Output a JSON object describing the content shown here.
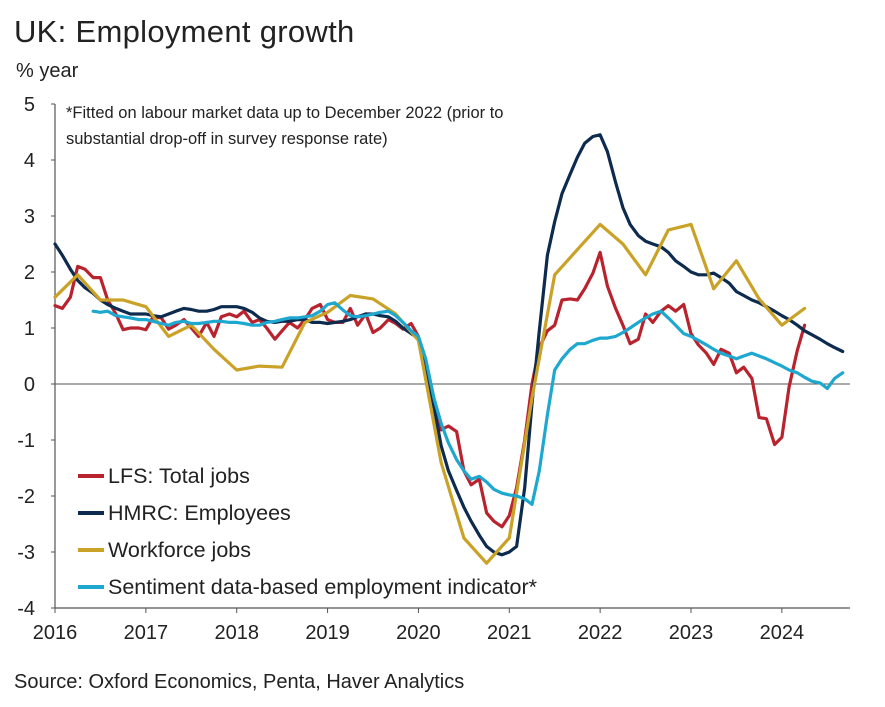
{
  "chart_data": {
    "type": "line",
    "title": "UK: Employment growth",
    "ylabel": "% year",
    "xlabel": "",
    "ylim": [
      -4,
      5
    ],
    "yticks": [
      5,
      4,
      3,
      2,
      1,
      0,
      -1,
      -2,
      -3,
      -4
    ],
    "xlim": [
      2016,
      2024.75
    ],
    "xticks": [
      2016,
      2017,
      2018,
      2019,
      2020,
      2021,
      2022,
      2023,
      2024
    ],
    "annotation_lines": [
      "*Fitted on labour market data up to December 2022 (prior to",
      "substantial drop-off in survey response rate)"
    ],
    "source": "Source: Oxford Economics, Penta, Haver Analytics",
    "legend_position": "bottom-left",
    "series": [
      {
        "name": "LFS: Total jobs",
        "color": "#b8232e",
        "x": [
          2016.0,
          2016.08,
          2016.17,
          2016.25,
          2016.33,
          2016.42,
          2016.5,
          2016.58,
          2016.67,
          2016.75,
          2016.83,
          2016.92,
          2017.0,
          2017.08,
          2017.17,
          2017.25,
          2017.33,
          2017.42,
          2017.5,
          2017.58,
          2017.67,
          2017.75,
          2017.83,
          2017.92,
          2018.0,
          2018.08,
          2018.17,
          2018.25,
          2018.33,
          2018.42,
          2018.5,
          2018.58,
          2018.67,
          2018.75,
          2018.83,
          2018.92,
          2019.0,
          2019.08,
          2019.17,
          2019.25,
          2019.33,
          2019.42,
          2019.5,
          2019.58,
          2019.67,
          2019.75,
          2019.83,
          2019.92,
          2020.0,
          2020.08,
          2020.17,
          2020.25,
          2020.33,
          2020.42,
          2020.5,
          2020.58,
          2020.67,
          2020.75,
          2020.83,
          2020.92,
          2021.0,
          2021.08,
          2021.17,
          2021.25,
          2021.33,
          2021.42,
          2021.5,
          2021.58,
          2021.67,
          2021.75,
          2021.83,
          2021.92,
          2022.0,
          2022.08,
          2022.17,
          2022.25,
          2022.33,
          2022.42,
          2022.5,
          2022.58,
          2022.67,
          2022.75,
          2022.83,
          2022.92,
          2023.0,
          2023.08,
          2023.17,
          2023.25,
          2023.33,
          2023.42,
          2023.5,
          2023.58,
          2023.67,
          2023.75,
          2023.83,
          2023.92,
          2024.0,
          2024.08,
          2024.17,
          2024.25,
          2024.33,
          2024.42,
          2024.5
        ],
        "values": [
          1.4,
          1.35,
          1.55,
          2.1,
          2.05,
          1.9,
          1.9,
          1.5,
          1.25,
          0.97,
          1.0,
          1.0,
          0.97,
          1.2,
          1.18,
          0.98,
          1.05,
          1.15,
          1.0,
          0.85,
          1.1,
          0.85,
          1.2,
          1.25,
          1.2,
          1.3,
          1.1,
          1.15,
          1.0,
          0.8,
          0.95,
          1.1,
          1.0,
          1.15,
          1.35,
          1.42,
          1.15,
          1.1,
          1.1,
          1.35,
          1.05,
          1.25,
          0.92,
          1.0,
          1.15,
          1.08,
          0.98,
          1.08,
          0.85,
          0.25,
          -0.4,
          -0.82,
          -0.75,
          -0.85,
          -1.55,
          -1.8,
          -1.7,
          -2.3,
          -2.45,
          -2.55,
          -2.35,
          -1.85,
          -1.0,
          0.0,
          0.65,
          0.95,
          1.05,
          1.5,
          1.52,
          1.5,
          1.7,
          1.98,
          2.35,
          1.75,
          1.35,
          1.05,
          0.72,
          0.8,
          1.25,
          1.1,
          1.3,
          1.4,
          1.3,
          1.42,
          0.9,
          0.7,
          0.55,
          0.35,
          0.62,
          0.55,
          0.2,
          0.3,
          0.1,
          -0.6,
          -0.62,
          -1.08,
          -0.95,
          -0.05,
          0.6,
          1.05,
          null,
          null,
          null
        ]
      },
      {
        "name": "HMRC: Employees",
        "color": "#0d2a4f",
        "x": [
          2016.0,
          2016.08,
          2016.17,
          2016.25,
          2016.33,
          2016.42,
          2016.5,
          2016.58,
          2016.67,
          2016.75,
          2016.83,
          2016.92,
          2017.0,
          2017.08,
          2017.17,
          2017.25,
          2017.33,
          2017.42,
          2017.5,
          2017.58,
          2017.67,
          2017.75,
          2017.83,
          2017.92,
          2018.0,
          2018.08,
          2018.17,
          2018.25,
          2018.33,
          2018.42,
          2018.5,
          2018.58,
          2018.67,
          2018.75,
          2018.83,
          2018.92,
          2019.0,
          2019.08,
          2019.17,
          2019.25,
          2019.33,
          2019.42,
          2019.5,
          2019.58,
          2019.67,
          2019.75,
          2019.83,
          2019.92,
          2020.0,
          2020.08,
          2020.17,
          2020.25,
          2020.33,
          2020.42,
          2020.5,
          2020.58,
          2020.67,
          2020.75,
          2020.83,
          2020.92,
          2021.0,
          2021.08,
          2021.17,
          2021.25,
          2021.33,
          2021.42,
          2021.5,
          2021.58,
          2021.67,
          2021.75,
          2021.83,
          2021.92,
          2022.0,
          2022.08,
          2022.17,
          2022.25,
          2022.33,
          2022.42,
          2022.5,
          2022.58,
          2022.67,
          2022.75,
          2022.83,
          2022.92,
          2023.0,
          2023.08,
          2023.17,
          2023.25,
          2023.33,
          2023.42,
          2023.5,
          2023.58,
          2023.67,
          2023.75,
          2023.83,
          2023.92,
          2024.0,
          2024.08,
          2024.17,
          2024.25,
          2024.33,
          2024.42,
          2024.5,
          2024.58,
          2024.67
        ],
        "values": [
          2.5,
          2.3,
          2.05,
          1.85,
          1.72,
          1.62,
          1.5,
          1.42,
          1.35,
          1.3,
          1.25,
          1.25,
          1.25,
          1.22,
          1.2,
          1.25,
          1.3,
          1.35,
          1.33,
          1.3,
          1.3,
          1.33,
          1.38,
          1.38,
          1.38,
          1.35,
          1.28,
          1.18,
          1.12,
          1.1,
          1.12,
          1.12,
          1.15,
          1.15,
          1.1,
          1.1,
          1.08,
          1.1,
          1.12,
          1.15,
          1.2,
          1.25,
          1.25,
          1.22,
          1.2,
          1.12,
          1.0,
          0.9,
          0.82,
          0.4,
          -0.4,
          -1.1,
          -1.55,
          -1.9,
          -2.2,
          -2.45,
          -2.7,
          -2.9,
          -3.0,
          -3.05,
          -3.0,
          -2.9,
          -1.85,
          -0.35,
          0.95,
          2.3,
          2.9,
          3.4,
          3.75,
          4.05,
          4.3,
          4.42,
          4.45,
          4.15,
          3.6,
          3.15,
          2.85,
          2.65,
          2.55,
          2.5,
          2.45,
          2.35,
          2.2,
          2.1,
          2.0,
          1.95,
          1.95,
          1.98,
          1.9,
          1.8,
          1.65,
          1.58,
          1.5,
          1.45,
          1.38,
          1.3,
          1.22,
          1.15,
          1.05,
          0.95,
          0.88,
          0.8,
          0.72,
          0.65,
          0.58
        ]
      },
      {
        "name": "Workforce jobs",
        "color": "#c9a227",
        "x": [
          2016.0,
          2016.25,
          2016.5,
          2016.75,
          2017.0,
          2017.25,
          2017.5,
          2017.75,
          2018.0,
          2018.25,
          2018.5,
          2018.75,
          2019.0,
          2019.25,
          2019.5,
          2019.75,
          2020.0,
          2020.25,
          2020.5,
          2020.75,
          2021.0,
          2021.25,
          2021.5,
          2021.75,
          2022.0,
          2022.25,
          2022.5,
          2022.75,
          2023.0,
          2023.25,
          2023.5,
          2023.75,
          2024.0,
          2024.25
        ],
        "values": [
          1.55,
          1.95,
          1.5,
          1.5,
          1.38,
          0.85,
          1.05,
          0.62,
          0.25,
          0.32,
          0.3,
          1.1,
          1.28,
          1.58,
          1.52,
          1.25,
          0.78,
          -1.4,
          -2.75,
          -3.2,
          -2.75,
          -0.25,
          1.95,
          2.4,
          2.85,
          2.5,
          1.95,
          2.75,
          2.85,
          1.7,
          2.2,
          1.52,
          1.05,
          1.35
        ]
      },
      {
        "name": "Sentiment data-based employment indicator*",
        "color": "#1ea7cf",
        "x": [
          2016.42,
          2016.5,
          2016.58,
          2016.67,
          2016.75,
          2016.83,
          2016.92,
          2017.0,
          2017.08,
          2017.17,
          2017.25,
          2017.33,
          2017.42,
          2017.5,
          2017.58,
          2017.67,
          2017.75,
          2017.83,
          2017.92,
          2018.0,
          2018.08,
          2018.17,
          2018.25,
          2018.33,
          2018.42,
          2018.5,
          2018.58,
          2018.67,
          2018.75,
          2018.83,
          2018.92,
          2019.0,
          2019.08,
          2019.17,
          2019.25,
          2019.33,
          2019.42,
          2019.5,
          2019.58,
          2019.67,
          2019.75,
          2019.83,
          2019.92,
          2020.0,
          2020.08,
          2020.17,
          2020.25,
          2020.33,
          2020.42,
          2020.5,
          2020.58,
          2020.67,
          2020.75,
          2020.83,
          2020.92,
          2021.0,
          2021.08,
          2021.17,
          2021.25,
          2021.33,
          2021.42,
          2021.5,
          2021.58,
          2021.67,
          2021.75,
          2021.83,
          2021.92,
          2022.0,
          2022.08,
          2022.17,
          2022.25,
          2022.33,
          2022.42,
          2022.5,
          2022.58,
          2022.67,
          2022.75,
          2022.83,
          2022.92,
          2023.0,
          2023.08,
          2023.17,
          2023.25,
          2023.33,
          2023.42,
          2023.5,
          2023.58,
          2023.67,
          2023.75,
          2023.83,
          2023.92,
          2024.0,
          2024.08,
          2024.17,
          2024.25,
          2024.33,
          2024.42,
          2024.5,
          2024.58,
          2024.67
        ],
        "values": [
          1.3,
          1.28,
          1.3,
          1.22,
          1.2,
          1.18,
          1.15,
          1.15,
          1.12,
          1.08,
          1.05,
          1.1,
          1.12,
          1.08,
          1.08,
          1.1,
          1.12,
          1.12,
          1.1,
          1.1,
          1.08,
          1.05,
          1.05,
          1.1,
          1.12,
          1.15,
          1.18,
          1.18,
          1.2,
          1.22,
          1.3,
          1.42,
          1.45,
          1.32,
          1.22,
          1.2,
          1.22,
          1.25,
          1.28,
          1.3,
          1.22,
          1.1,
          0.95,
          0.85,
          0.45,
          -0.25,
          -0.7,
          -1.05,
          -1.35,
          -1.55,
          -1.7,
          -1.65,
          -1.75,
          -1.88,
          -1.95,
          -1.98,
          -2.0,
          -2.05,
          -2.15,
          -1.55,
          -0.55,
          0.25,
          0.45,
          0.62,
          0.72,
          0.72,
          0.78,
          0.82,
          0.82,
          0.85,
          0.92,
          1.0,
          1.1,
          1.18,
          1.25,
          1.3,
          1.18,
          1.05,
          0.9,
          0.85,
          0.78,
          0.7,
          0.62,
          0.55,
          0.5,
          0.45,
          0.5,
          0.55,
          0.5,
          0.45,
          0.38,
          0.32,
          0.25,
          0.2,
          0.12,
          0.05,
          0.02,
          -0.08,
          0.1,
          0.2
        ]
      }
    ]
  }
}
